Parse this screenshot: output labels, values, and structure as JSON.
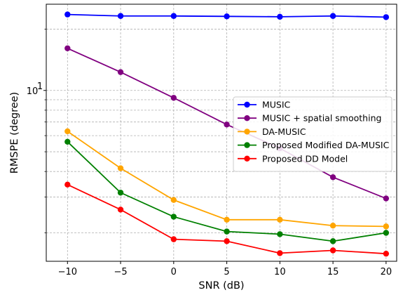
{
  "chart_data": {
    "type": "line",
    "xlabel": "SNR (dB)",
    "ylabel": "RMSPE (degree)",
    "y_scale": "log",
    "xlim": [
      -12,
      21
    ],
    "ylim": [
      1.45,
      26.5
    ],
    "x": [
      -10,
      -5,
      0,
      5,
      10,
      15,
      20
    ],
    "x_ticks": [
      {
        "value": -10,
        "label": "−10"
      },
      {
        "value": -5,
        "label": "−5"
      },
      {
        "value": 0,
        "label": "0"
      },
      {
        "value": 5,
        "label": "5"
      },
      {
        "value": 10,
        "label": "10"
      },
      {
        "value": 15,
        "label": "15"
      },
      {
        "value": 20,
        "label": "20"
      }
    ],
    "y_ticks": [
      {
        "value": 10,
        "label": "10"
      }
    ],
    "y_minor_ticks": [
      2,
      3,
      4,
      5,
      6,
      7,
      8,
      9,
      20
    ],
    "grid": true,
    "legend_position": "center-right",
    "series": [
      {
        "name": "MUSIC",
        "color": "#0000ff",
        "values": [
          23.6,
          23.2,
          23.2,
          23.1,
          23.0,
          23.2,
          22.9
        ]
      },
      {
        "name": "MUSIC + spatial smoothing",
        "color": "#800080",
        "values": [
          16.1,
          12.3,
          9.2,
          6.8,
          5.2,
          3.75,
          2.95
        ]
      },
      {
        "name": "DA-MUSIC",
        "color": "#ffa500",
        "values": [
          6.3,
          4.15,
          2.9,
          2.32,
          2.32,
          2.17,
          2.15
        ]
      },
      {
        "name": "Proposed Modified DA-MUSIC",
        "color": "#008000",
        "values": [
          5.6,
          3.15,
          2.4,
          2.03,
          1.97,
          1.82,
          2.0
        ]
      },
      {
        "name": "Proposed DD Model",
        "color": "#ff0000",
        "values": [
          3.45,
          2.6,
          1.86,
          1.82,
          1.59,
          1.64,
          1.58
        ]
      }
    ]
  }
}
